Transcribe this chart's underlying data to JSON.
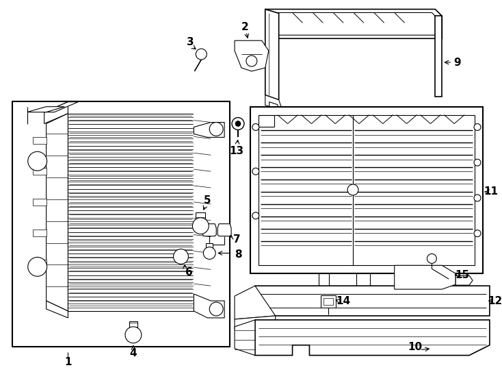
{
  "bg_color": "#ffffff",
  "line_color": "#000000",
  "lw": 0.8,
  "tlw": 1.5,
  "figw": 7.34,
  "figh": 5.4,
  "dpi": 100
}
